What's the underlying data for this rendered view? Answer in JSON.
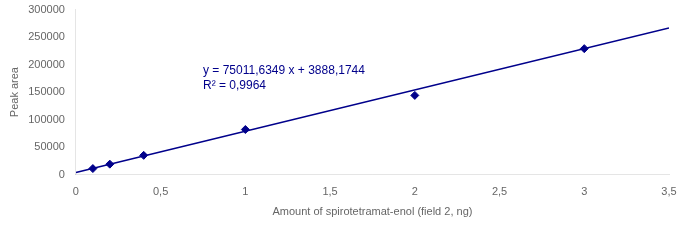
{
  "chart_data": {
    "type": "scatter",
    "xlabel": "Amount of spirotetramat-enol (field 2, ng)",
    "ylabel": "Peak area",
    "series": [
      {
        "type": "scatter",
        "color": "#00008B",
        "marker": "diamond",
        "x": [
          0.1,
          0.2,
          0.4,
          1.0,
          2.0,
          3.0
        ],
        "values": [
          11000,
          19000,
          35000,
          82000,
          144000,
          229000
        ]
      },
      {
        "type": "line",
        "color": "#00008B",
        "line_style": "solid",
        "x": [
          0,
          3.5
        ],
        "values": [
          3888.1744,
          266428.89655
        ]
      }
    ],
    "xlim": [
      0,
      3.5
    ],
    "ylim": [
      0,
      300000
    ],
    "xticks": [
      0,
      {
        "value": 0.5,
        "label": "0,5"
      },
      1,
      {
        "value": 1.5,
        "label": "1,5"
      },
      2,
      {
        "value": 2.5,
        "label": "2,5"
      },
      3,
      {
        "value": 3.5,
        "label": "3,5"
      }
    ],
    "yticks": [
      0,
      50000,
      100000,
      150000,
      200000,
      250000,
      300000
    ],
    "grid": false,
    "annotations": [
      {
        "text": "y = 75011,6349 x + 3888,1744\nR² = 0,9964",
        "x": 0.75,
        "y": 175000,
        "color": "#00008B"
      }
    ]
  }
}
